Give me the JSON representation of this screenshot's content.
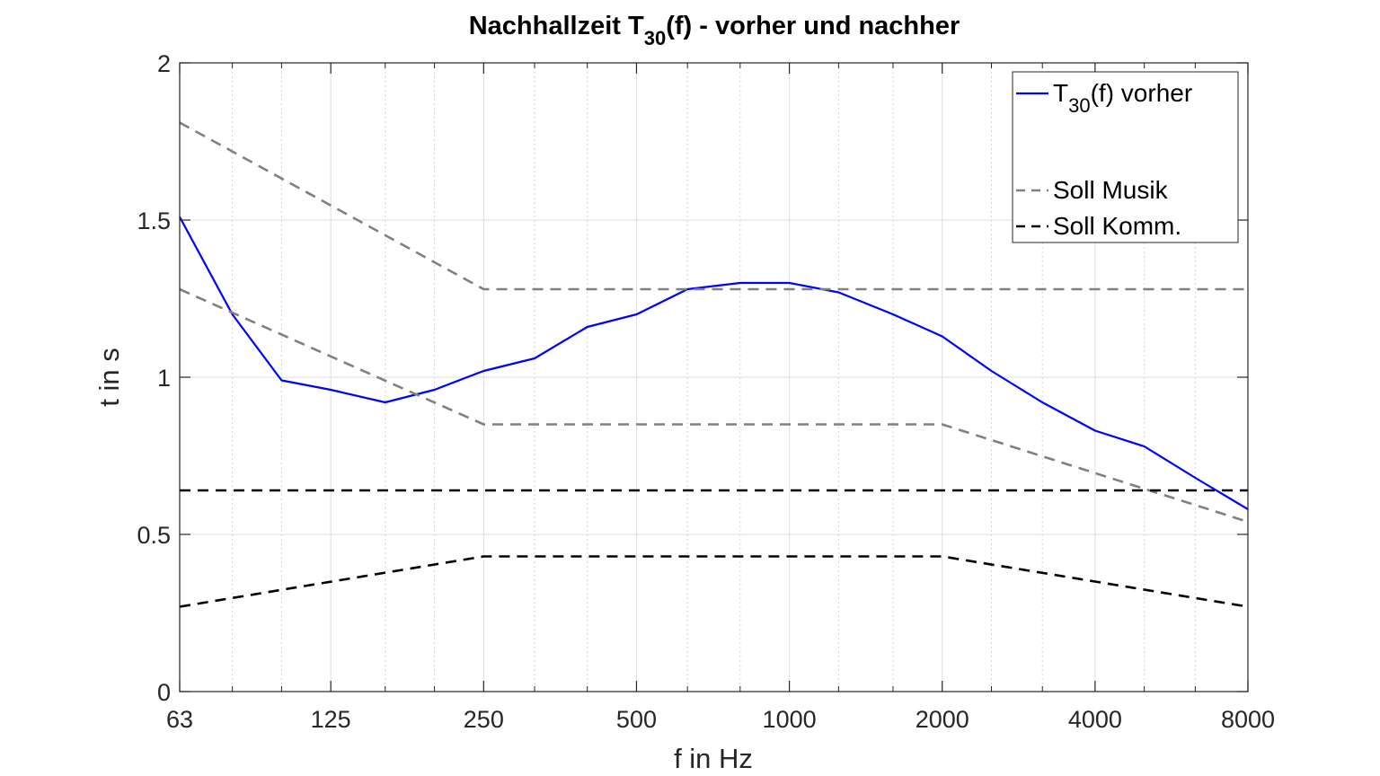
{
  "chart_data": {
    "type": "line",
    "title": {
      "main": "Nachhallzeit T",
      "sub": "30",
      "rest": "(f) - vorher und nachher"
    },
    "xlabel": "f in Hz",
    "ylabel": "t in s",
    "x_scale": "log",
    "xlim": [
      63,
      8000
    ],
    "ylim": [
      0,
      2
    ],
    "x_ticks": [
      63,
      125,
      250,
      500,
      1000,
      2000,
      4000,
      8000
    ],
    "x_tick_labels": [
      "63",
      "125",
      "250",
      "500",
      "1000",
      "2000",
      "4000",
      "8000"
    ],
    "y_ticks": [
      0,
      0.5,
      1,
      1.5,
      2
    ],
    "y_tick_labels": [
      "0",
      "0.5",
      "1",
      "1.5",
      "2"
    ],
    "x_minor_ticks": [
      80,
      100,
      160,
      200,
      315,
      400,
      630,
      800,
      1250,
      1600,
      2500,
      3150,
      5000,
      6300
    ],
    "grid": true,
    "legend_position": "top-right",
    "series": [
      {
        "name": {
          "main": "T",
          "sub": "30",
          "rest": "(f) vorher"
        },
        "color": "#0000ff",
        "style": "solid",
        "legend": true,
        "x": [
          63,
          80,
          100,
          125,
          160,
          200,
          250,
          315,
          400,
          500,
          630,
          800,
          1000,
          1250,
          1600,
          2000,
          2500,
          3150,
          4000,
          5000,
          6300,
          8000
        ],
        "y": [
          1.51,
          1.2,
          0.99,
          0.96,
          0.92,
          0.96,
          1.02,
          1.06,
          1.16,
          1.2,
          1.28,
          1.3,
          1.3,
          1.27,
          1.2,
          1.13,
          1.02,
          0.92,
          0.83,
          0.78,
          0.68,
          0.58
        ]
      },
      {
        "name": "Soll Musik",
        "color": "#808080",
        "style": "dashed",
        "legend": true,
        "x": [
          63,
          250,
          8000
        ],
        "y": [
          1.81,
          1.28,
          1.28
        ]
      },
      {
        "color": "#808080",
        "style": "dashed",
        "legend": false,
        "x": [
          63,
          250,
          2000,
          8000
        ],
        "y": [
          1.28,
          0.85,
          0.85,
          0.54
        ]
      },
      {
        "name": "Soll Komm.",
        "color": "#000000",
        "style": "dashed",
        "legend": true,
        "x": [
          63,
          8000
        ],
        "y": [
          0.64,
          0.64
        ]
      },
      {
        "color": "#000000",
        "style": "dashed",
        "legend": false,
        "x": [
          63,
          250,
          2000,
          8000
        ],
        "y": [
          0.27,
          0.43,
          0.43,
          0.27
        ]
      }
    ]
  }
}
